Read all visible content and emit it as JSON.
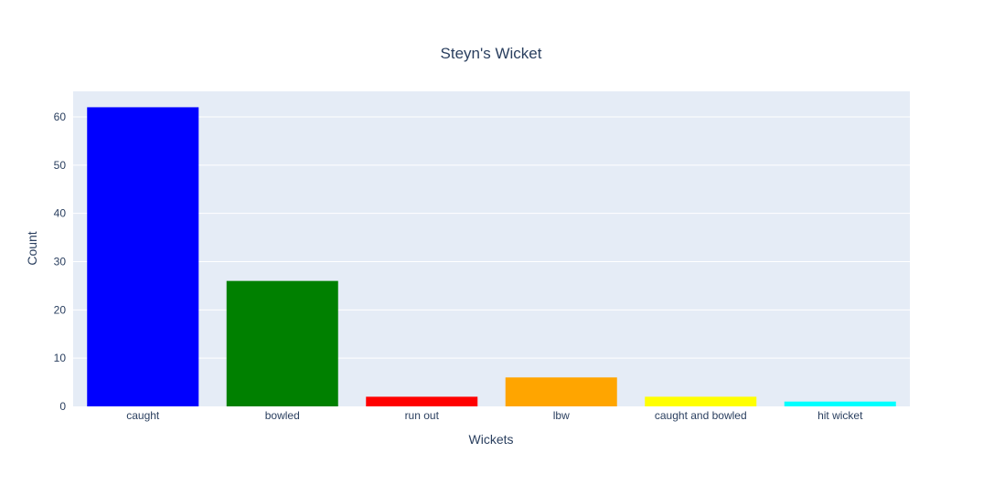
{
  "chart_data": {
    "type": "bar",
    "title": "Steyn's Wicket",
    "xlabel": "Wickets",
    "ylabel": "Count",
    "categories": [
      "caught",
      "bowled",
      "run out",
      "lbw",
      "caught and bowled",
      "hit wicket"
    ],
    "values": [
      62,
      26,
      2,
      6,
      2,
      1
    ],
    "colors": [
      "#0000ff",
      "#008000",
      "#ff0000",
      "#ffa500",
      "#ffff00",
      "#00ffff"
    ],
    "ylim": [
      0,
      65.3
    ],
    "yticks": [
      0,
      10,
      20,
      30,
      40,
      50,
      60
    ],
    "grid": true,
    "plot_background": "#e5ecf6",
    "legend": "none"
  }
}
